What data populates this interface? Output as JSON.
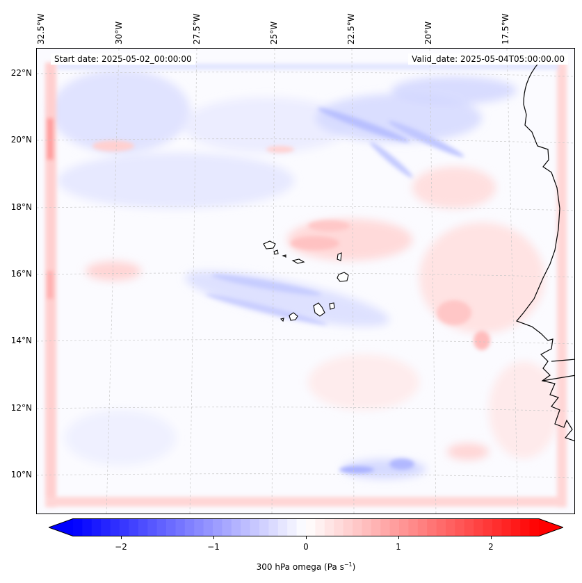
{
  "map": {
    "start_date": "Start date: 2025-05-02_00:00:00",
    "valid_date": "Valid_date: 2025-05-04T05:00:00.00",
    "lon_labels": [
      "32.5°W",
      "30°W",
      "27.5°W",
      "25°W",
      "22.5°W",
      "20°W",
      "17.5°W"
    ],
    "lat_labels": [
      "22°N",
      "20°N",
      "18°N",
      "16°N",
      "14°N",
      "12°N",
      "10°N"
    ]
  },
  "colorbar": {
    "ticks": [
      "−2",
      "−1",
      "0",
      "1",
      "2"
    ],
    "tick_values": [
      -2,
      -1,
      0,
      1,
      2
    ],
    "range": [
      -2.5,
      2.5
    ],
    "label_prefix": "300 hPa omega (Pa s",
    "label_exponent": "−1",
    "label_suffix": ")",
    "colors": {
      "negative": "#0000ff",
      "zero": "#ffffff",
      "positive": "#ff0000",
      "coastline": "#000000"
    }
  }
}
